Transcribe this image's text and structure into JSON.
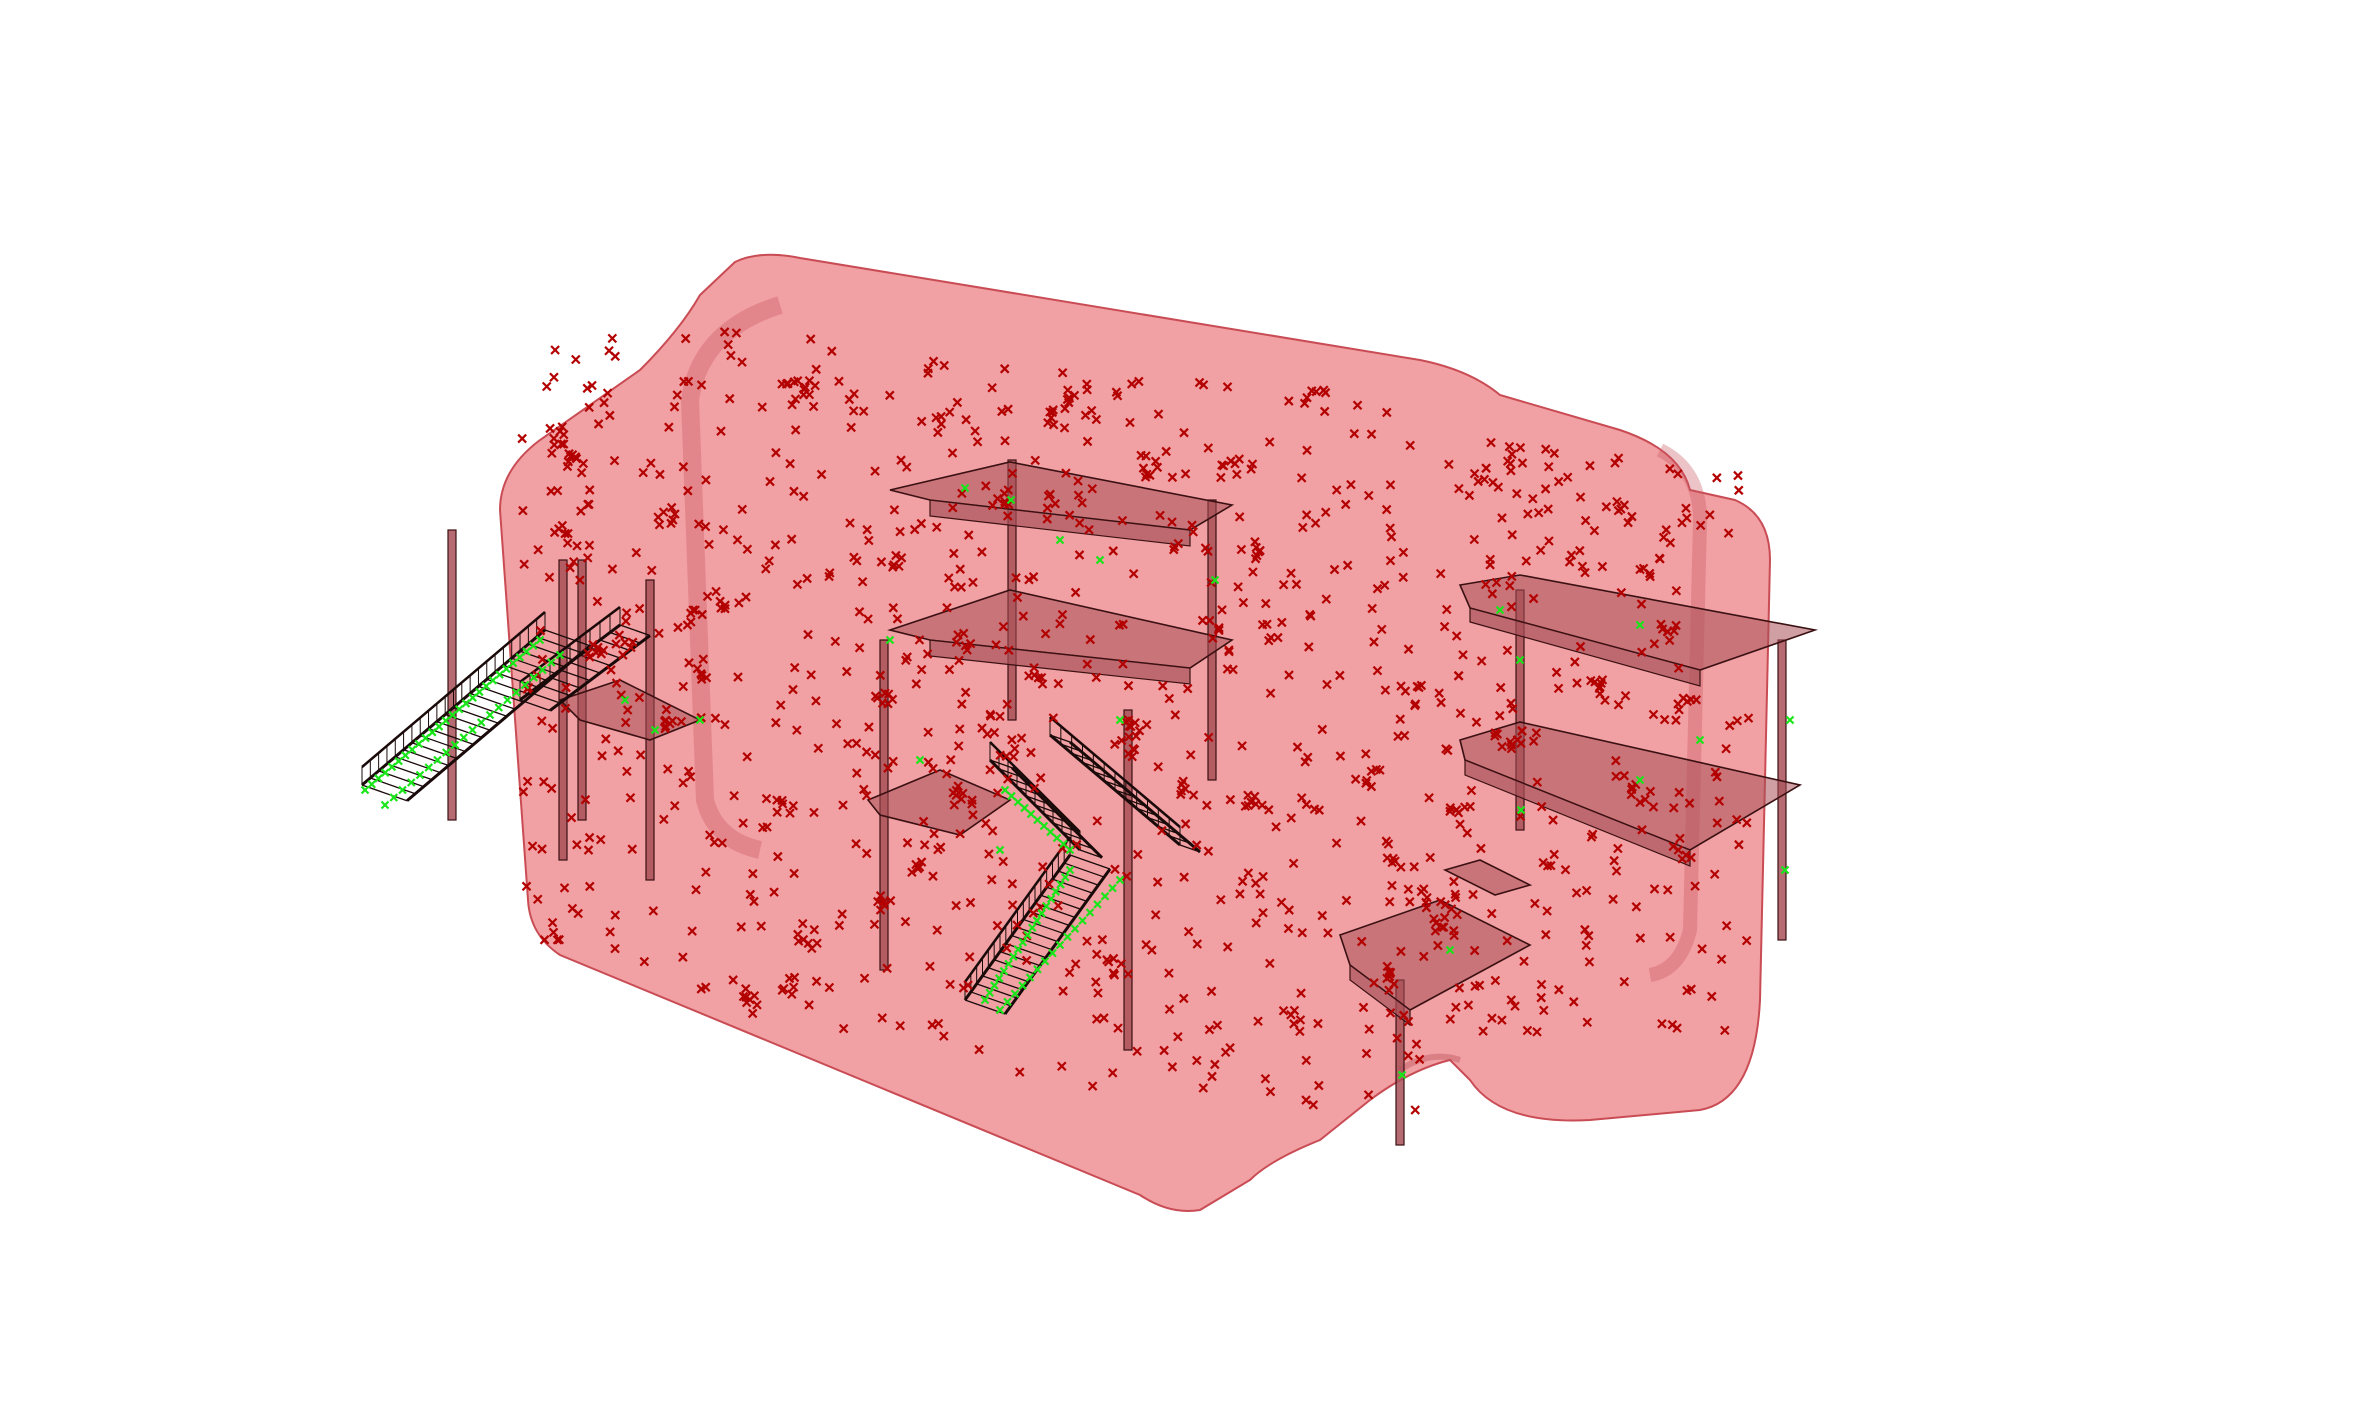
{
  "viewport": {
    "background": "#ffffff",
    "colors": {
      "volume_fill": "#e8656b",
      "volume_edge": "#c94c55",
      "structure_fill": "#a85158",
      "structure_stroke": "#3a1012",
      "stair_stroke": "#1a0a0a",
      "sample_point_interior": "#b30000",
      "sample_point_surface": "#19e619"
    },
    "elements": {
      "volume": "translucent-bounding-volume",
      "structures": [
        "stair-left",
        "stair-center",
        "platform-center-upper",
        "platform-center-lower",
        "platform-right-upper",
        "platform-right-lower",
        "platform-small-center"
      ],
      "markers": [
        "sample-point-interior",
        "sample-point-surface"
      ]
    }
  }
}
